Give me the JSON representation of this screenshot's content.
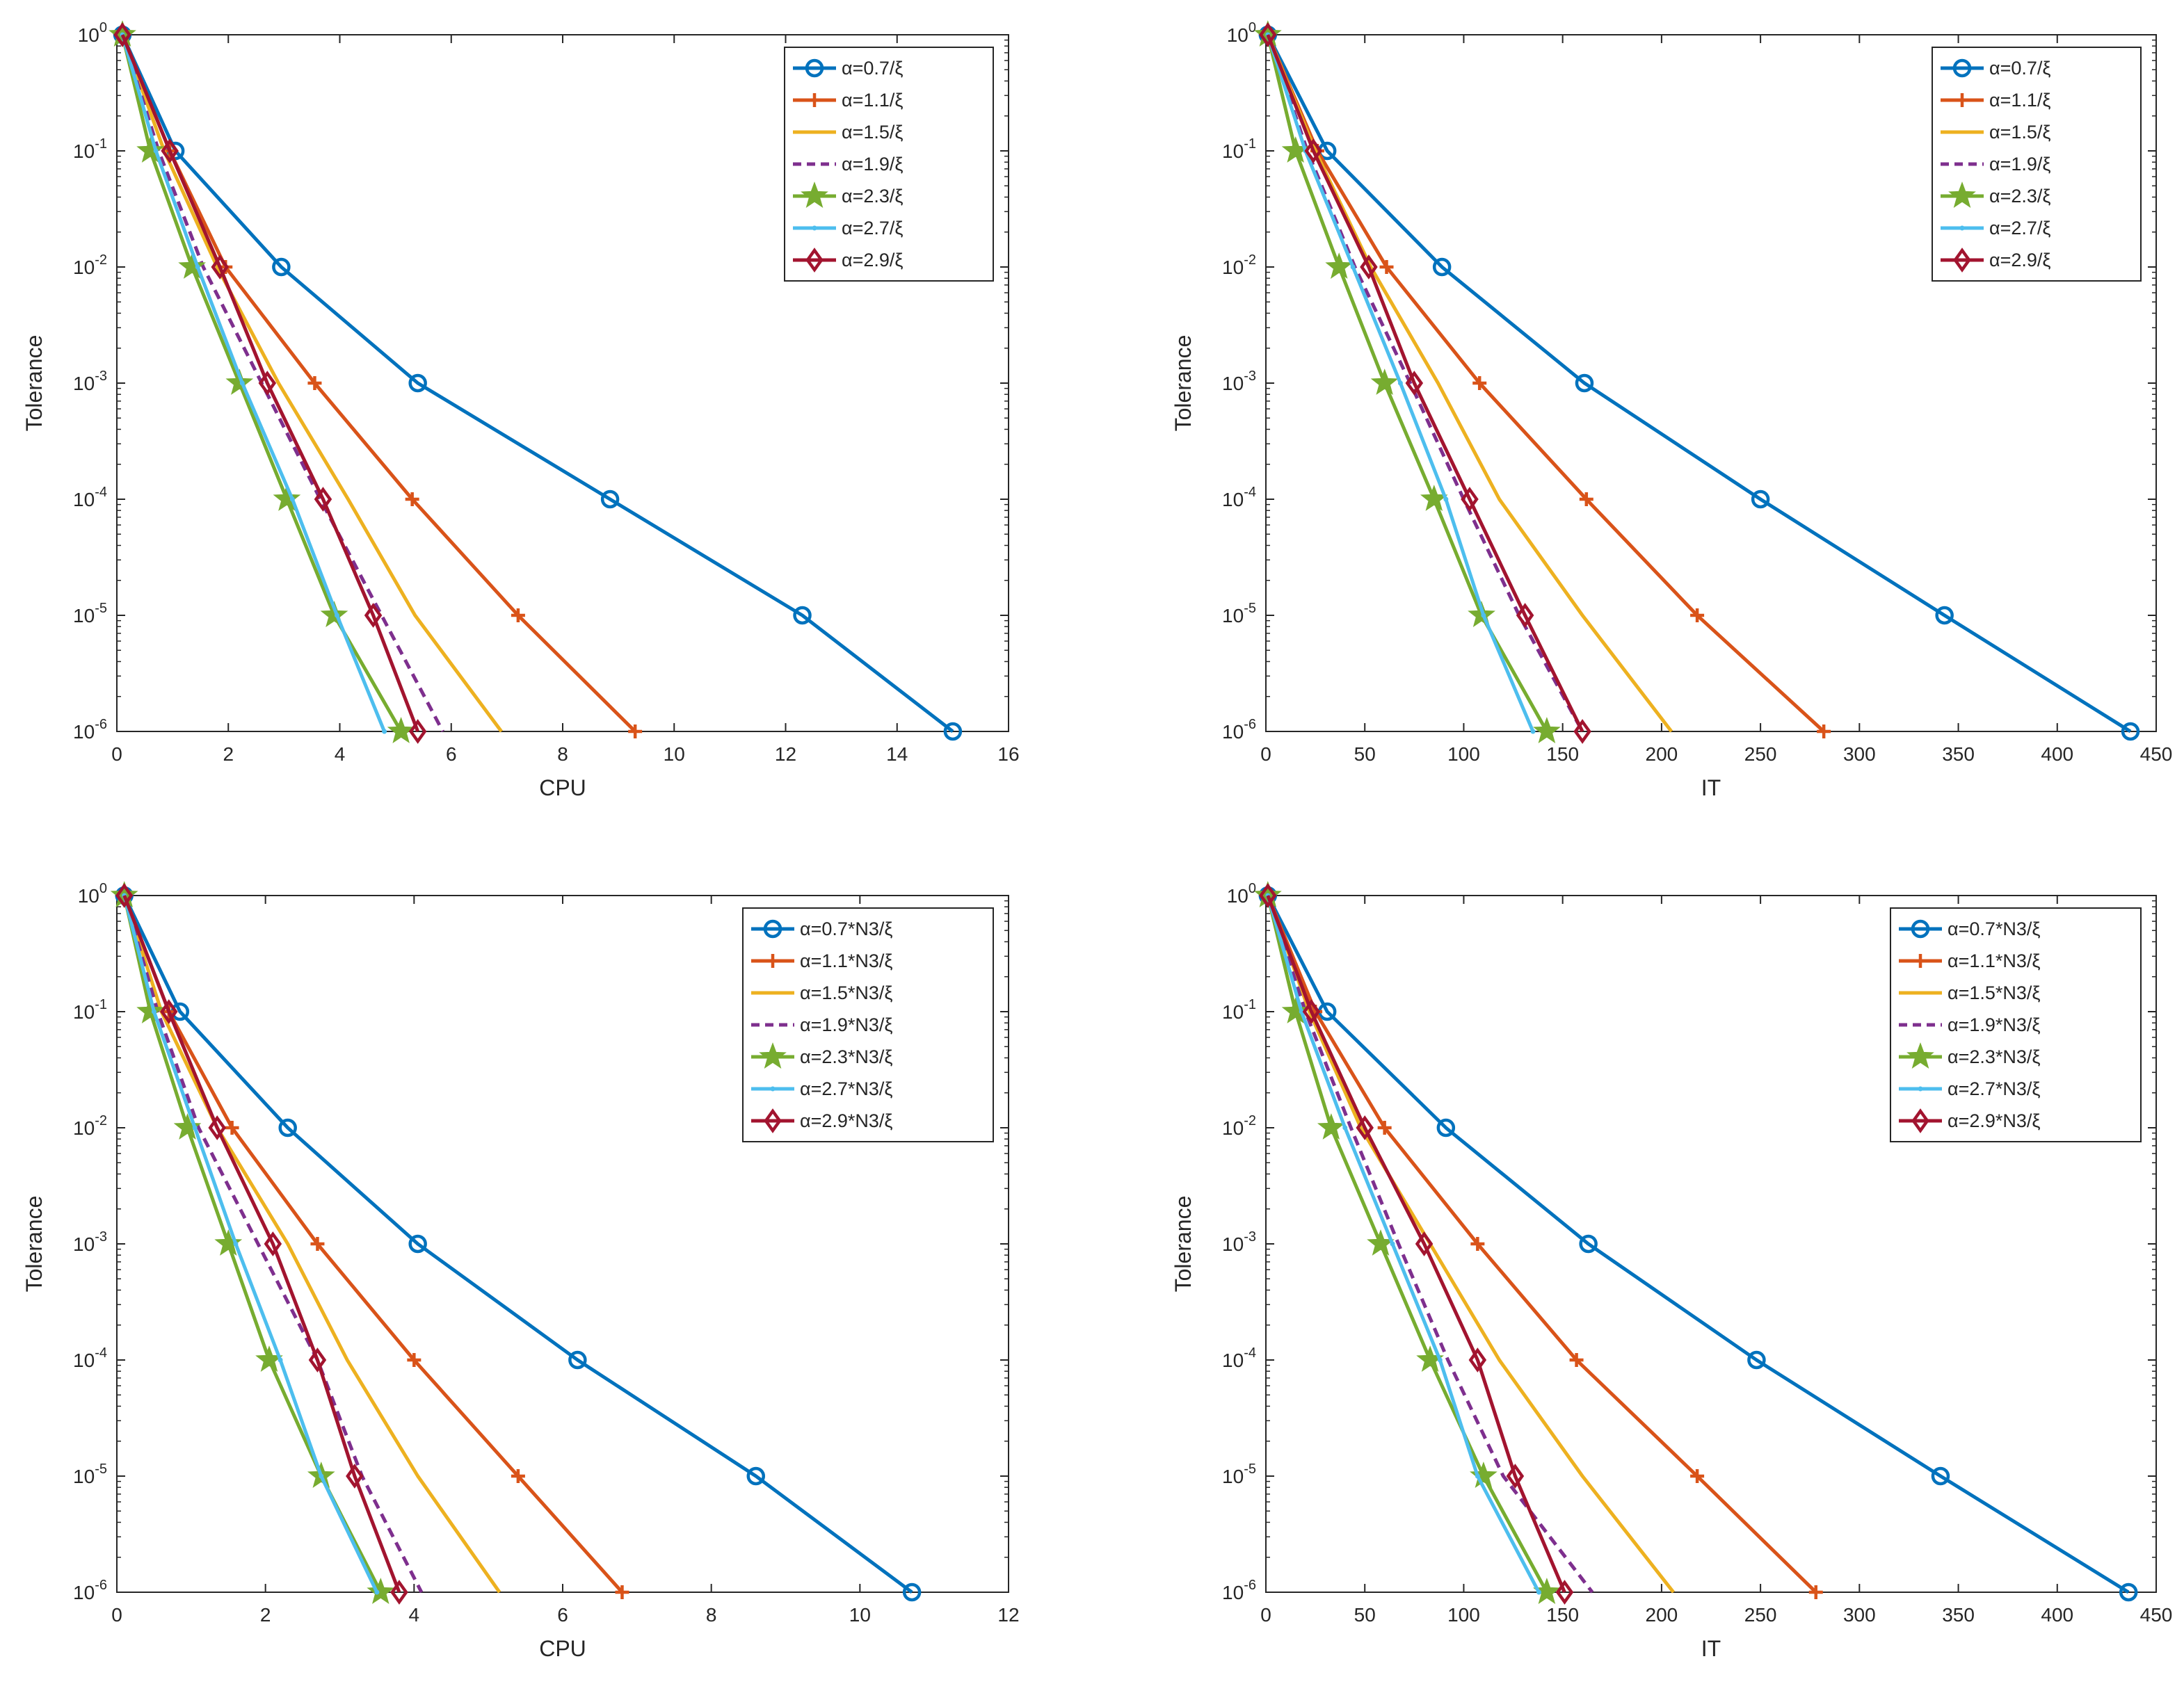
{
  "figure_title": "",
  "chart_data": [
    {
      "type": "line",
      "panel": "top-left",
      "xlabel": "CPU",
      "ylabel": "Tolerance",
      "xlim": [
        0,
        16
      ],
      "xticks": [
        0,
        2,
        4,
        6,
        8,
        10,
        12,
        14,
        16
      ],
      "ylim_exponent": [
        -6,
        0
      ],
      "y_scale": "log10",
      "legend_position": "top-right",
      "series": [
        {
          "name": "α=0.7/ξ",
          "x": [
            0.1,
            1.05,
            2.95,
            5.4,
            8.85,
            12.3,
            15.0
          ],
          "y_exp": [
            0,
            -1,
            -2,
            -3,
            -4,
            -5,
            -6
          ]
        },
        {
          "name": "α=1.1/ξ",
          "x": [
            0.1,
            0.95,
            1.95,
            3.55,
            5.3,
            7.2,
            9.3
          ],
          "y_exp": [
            0,
            -1,
            -2,
            -3,
            -4,
            -5,
            -6
          ]
        },
        {
          "name": "α=1.5/ξ",
          "x": [
            0.1,
            0.85,
            1.8,
            2.9,
            4.15,
            5.35,
            6.9
          ],
          "y_exp": [
            0,
            -1,
            -2,
            -3,
            -4,
            -5,
            -6
          ]
        },
        {
          "name": "α=1.9/ξ",
          "x": [
            0.1,
            0.75,
            1.55,
            2.6,
            3.65,
            4.75,
            5.85
          ],
          "y_exp": [
            0,
            -1,
            -2,
            -3,
            -4,
            -5,
            -6
          ]
        },
        {
          "name": "α=2.3/ξ",
          "x": [
            0.1,
            0.6,
            1.35,
            2.2,
            3.05,
            3.9,
            5.1
          ],
          "y_exp": [
            0,
            -1,
            -2,
            -3,
            -4,
            -5,
            -6
          ]
        },
        {
          "name": "α=2.7/ξ",
          "x": [
            0.1,
            0.7,
            1.45,
            2.25,
            3.15,
            3.95,
            4.8
          ],
          "y_exp": [
            0,
            -1,
            -2,
            -3,
            -4,
            -5,
            -6
          ]
        },
        {
          "name": "α=2.9/ξ",
          "x": [
            0.1,
            0.95,
            1.85,
            2.7,
            3.7,
            4.6,
            5.4
          ],
          "y_exp": [
            0,
            -1,
            -2,
            -3,
            -4,
            -5,
            -6
          ]
        }
      ]
    },
    {
      "type": "line",
      "panel": "top-right",
      "xlabel": "IT",
      "ylabel": "Tolerance",
      "xlim": [
        0,
        450
      ],
      "xticks": [
        0,
        50,
        100,
        150,
        200,
        250,
        300,
        350,
        400,
        450
      ],
      "ylim_exponent": [
        -6,
        0
      ],
      "y_scale": "log10",
      "legend_position": "top-right",
      "series": [
        {
          "name": "α=0.7/ξ",
          "x": [
            1,
            31,
            89,
            161,
            250,
            343,
            437
          ],
          "y_exp": [
            0,
            -1,
            -2,
            -3,
            -4,
            -5,
            -6
          ]
        },
        {
          "name": "α=1.1/ξ",
          "x": [
            1,
            26,
            61,
            108,
            162,
            218,
            282
          ],
          "y_exp": [
            0,
            -1,
            -2,
            -3,
            -4,
            -5,
            -6
          ]
        },
        {
          "name": "α=1.5/ξ",
          "x": [
            1,
            25,
            53,
            87,
            118,
            160,
            205
          ],
          "y_exp": [
            0,
            -1,
            -2,
            -3,
            -4,
            -5,
            -6
          ]
        },
        {
          "name": "α=1.9/ξ",
          "x": [
            1,
            21,
            45,
            73,
            100,
            128,
            160
          ],
          "y_exp": [
            0,
            -1,
            -2,
            -3,
            -4,
            -5,
            -6
          ]
        },
        {
          "name": "α=2.3/ξ",
          "x": [
            1,
            15,
            37,
            60,
            85,
            109,
            142
          ],
          "y_exp": [
            0,
            -1,
            -2,
            -3,
            -4,
            -5,
            -6
          ]
        },
        {
          "name": "α=2.7/ξ",
          "x": [
            1,
            20,
            44,
            68,
            91,
            110,
            135
          ],
          "y_exp": [
            0,
            -1,
            -2,
            -3,
            -4,
            -5,
            -6
          ]
        },
        {
          "name": "α=2.9/ξ",
          "x": [
            1,
            24,
            52,
            75,
            103,
            131,
            160
          ],
          "y_exp": [
            0,
            -1,
            -2,
            -3,
            -4,
            -5,
            -6
          ]
        }
      ]
    },
    {
      "type": "line",
      "panel": "bottom-left",
      "xlabel": "CPU",
      "ylabel": "Tolerance",
      "xlim": [
        0,
        12
      ],
      "xticks": [
        0,
        2,
        4,
        6,
        8,
        10,
        12
      ],
      "ylim_exponent": [
        -6,
        0
      ],
      "y_scale": "log10",
      "legend_position": "top-right",
      "series": [
        {
          "name": "α=0.7*N3/ξ",
          "x": [
            0.1,
            0.85,
            2.3,
            4.05,
            6.2,
            8.6,
            10.7
          ],
          "y_exp": [
            0,
            -1,
            -2,
            -3,
            -4,
            -5,
            -6
          ]
        },
        {
          "name": "α=1.1*N3/ξ",
          "x": [
            0.1,
            0.7,
            1.55,
            2.7,
            4.0,
            5.4,
            6.8
          ],
          "y_exp": [
            0,
            -1,
            -2,
            -3,
            -4,
            -5,
            -6
          ]
        },
        {
          "name": "α=1.5*N3/ξ",
          "x": [
            0.1,
            0.6,
            1.35,
            2.3,
            3.1,
            4.05,
            5.15
          ],
          "y_exp": [
            0,
            -1,
            -2,
            -3,
            -4,
            -5,
            -6
          ]
        },
        {
          "name": "α=1.9*N3/ξ",
          "x": [
            0.1,
            0.55,
            1.1,
            1.9,
            2.7,
            3.3,
            4.1
          ],
          "y_exp": [
            0,
            -1,
            -2,
            -3,
            -4,
            -5,
            -6
          ]
        },
        {
          "name": "α=2.3*N3/ξ",
          "x": [
            0.1,
            0.45,
            0.95,
            1.5,
            2.05,
            2.75,
            3.55
          ],
          "y_exp": [
            0,
            -1,
            -2,
            -3,
            -4,
            -5,
            -6
          ]
        },
        {
          "name": "α=2.7*N3/ξ",
          "x": [
            0.1,
            0.5,
            1.05,
            1.6,
            2.2,
            2.75,
            3.5
          ],
          "y_exp": [
            0,
            -1,
            -2,
            -3,
            -4,
            -5,
            -6
          ]
        },
        {
          "name": "α=2.9*N3/ξ",
          "x": [
            0.1,
            0.7,
            1.35,
            2.1,
            2.7,
            3.2,
            3.8
          ],
          "y_exp": [
            0,
            -1,
            -2,
            -3,
            -4,
            -5,
            -6
          ]
        }
      ]
    },
    {
      "type": "line",
      "panel": "bottom-right",
      "xlabel": "IT",
      "ylabel": "Tolerance",
      "xlim": [
        0,
        450
      ],
      "xticks": [
        0,
        50,
        100,
        150,
        200,
        250,
        300,
        350,
        400,
        450
      ],
      "ylim_exponent": [
        -6,
        0
      ],
      "y_scale": "log10",
      "legend_position": "top-right",
      "series": [
        {
          "name": "α=0.7*N3/ξ",
          "x": [
            1,
            31,
            91,
            163,
            248,
            341,
            436
          ],
          "y_exp": [
            0,
            -1,
            -2,
            -3,
            -4,
            -5,
            -6
          ]
        },
        {
          "name": "α=1.1*N3/ξ",
          "x": [
            1,
            25,
            60,
            107,
            157,
            218,
            278
          ],
          "y_exp": [
            0,
            -1,
            -2,
            -3,
            -4,
            -5,
            -6
          ]
        },
        {
          "name": "α=1.5*N3/ξ",
          "x": [
            1,
            22,
            48,
            83,
            118,
            160,
            206
          ],
          "y_exp": [
            0,
            -1,
            -2,
            -3,
            -4,
            -5,
            -6
          ]
        },
        {
          "name": "α=1.9*N3/ξ",
          "x": [
            1,
            20,
            43,
            67,
            92,
            120,
            165
          ],
          "y_exp": [
            0,
            -1,
            -2,
            -3,
            -4,
            -5,
            -6
          ]
        },
        {
          "name": "α=2.3*N3/ξ",
          "x": [
            1,
            15,
            33,
            58,
            83,
            110,
            142
          ],
          "y_exp": [
            0,
            -1,
            -2,
            -3,
            -4,
            -5,
            -6
          ]
        },
        {
          "name": "α=2.7*N3/ξ",
          "x": [
            1,
            18,
            40,
            64,
            88,
            107,
            138
          ],
          "y_exp": [
            0,
            -1,
            -2,
            -3,
            -4,
            -5,
            -6
          ]
        },
        {
          "name": "α=2.9*N3/ξ",
          "x": [
            1,
            23,
            50,
            80,
            107,
            126,
            151
          ],
          "y_exp": [
            0,
            -1,
            -2,
            -3,
            -4,
            -5,
            -6
          ]
        }
      ]
    }
  ],
  "styles": [
    {
      "color": "#0072BD",
      "marker": "circle",
      "dash": false
    },
    {
      "color": "#D95319",
      "marker": "plus",
      "dash": false
    },
    {
      "color": "#EDB120",
      "marker": "none",
      "dash": false
    },
    {
      "color": "#7E2F8E",
      "marker": "none",
      "dash": true
    },
    {
      "color": "#77AC30",
      "marker": "star",
      "dash": false
    },
    {
      "color": "#4DBEEE",
      "marker": "point",
      "dash": false
    },
    {
      "color": "#A2142F",
      "marker": "diamond",
      "dash": false
    }
  ]
}
